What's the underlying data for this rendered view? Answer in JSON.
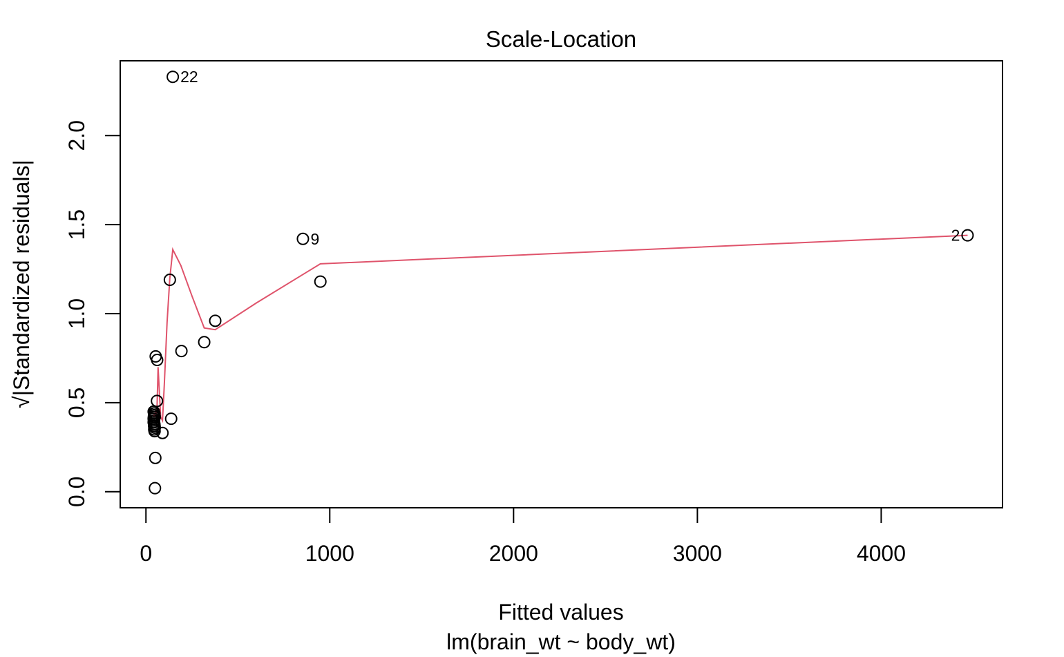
{
  "chart_data": {
    "type": "scatter",
    "title": "Scale-Location",
    "xlabel": "Fitted values",
    "sublabel": "lm(brain_wt ~ body_wt)",
    "ylabel": "√|Standardized residuals|",
    "xlim": [
      -140,
      4660
    ],
    "ylim": [
      -0.09,
      2.42
    ],
    "xticks": [
      0,
      1000,
      2000,
      3000,
      4000
    ],
    "xtick_labels": [
      "0",
      "1000",
      "2000",
      "3000",
      "4000"
    ],
    "yticks": [
      0.0,
      0.5,
      1.0,
      1.5,
      2.0
    ],
    "ytick_labels": [
      "0.0",
      "0.5",
      "1.0",
      "1.5",
      "2.0"
    ],
    "grid": false,
    "series": [
      {
        "kind": "points",
        "x": [
          146,
          854,
          4470,
          949,
          130,
          193,
          377,
          317,
          53,
          61,
          60,
          137,
          90,
          42,
          44,
          46,
          48,
          42,
          44,
          43,
          46,
          47,
          48,
          45,
          43,
          44,
          46,
          42,
          44,
          47,
          43,
          51,
          49,
          47
        ],
        "y": [
          2.33,
          1.42,
          1.44,
          1.18,
          1.19,
          0.79,
          0.96,
          0.84,
          0.76,
          0.74,
          0.51,
          0.41,
          0.33,
          0.45,
          0.44,
          0.43,
          0.42,
          0.41,
          0.4,
          0.39,
          0.38,
          0.37,
          0.36,
          0.35,
          0.42,
          0.43,
          0.44,
          0.39,
          0.37,
          0.34,
          0.45,
          0.19,
          0.02,
          0.42
        ],
        "labels": [
          "22",
          "9",
          "2",
          "",
          "",
          "",
          "",
          "",
          "",
          "",
          "",
          "",
          "",
          "",
          "",
          "",
          "",
          "",
          "",
          "",
          "",
          "",
          "",
          "",
          "",
          "",
          "",
          "",
          "",
          "",
          "",
          "",
          "",
          ""
        ]
      },
      {
        "kind": "smooth",
        "color": "#DF536B",
        "x": [
          42,
          45,
          48,
          52,
          56,
          60,
          66,
          72,
          80,
          90,
          100,
          115,
          130,
          146,
          190,
          250,
          317,
          377,
          600,
          854,
          949,
          4470
        ],
        "y": [
          0.42,
          0.44,
          0.43,
          0.45,
          0.44,
          0.46,
          0.7,
          0.58,
          0.42,
          0.4,
          0.6,
          0.95,
          1.2,
          1.36,
          1.27,
          1.1,
          0.92,
          0.91,
          1.06,
          1.22,
          1.28,
          1.44
        ]
      }
    ]
  }
}
